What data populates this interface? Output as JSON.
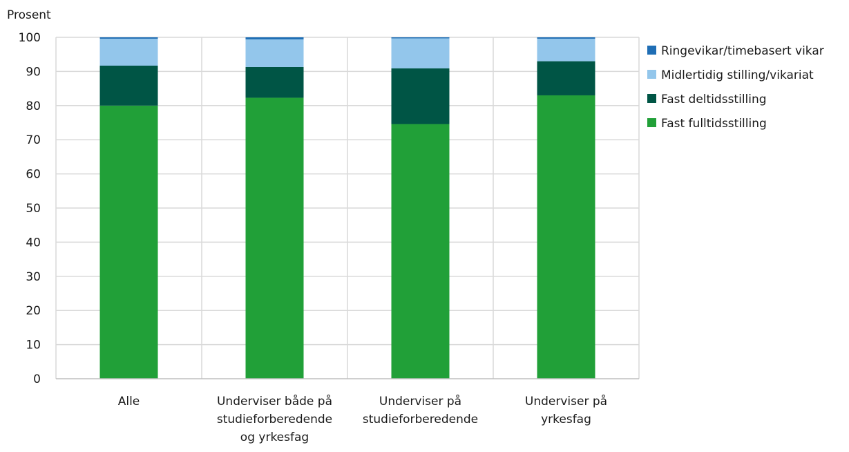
{
  "chart_data": {
    "type": "bar",
    "stacked": true,
    "ylabel": "Prosent",
    "ylim": [
      0,
      100
    ],
    "yticks": [
      0,
      10,
      20,
      30,
      40,
      50,
      60,
      70,
      80,
      90,
      100
    ],
    "grid": true,
    "legend_position": "right",
    "categories": [
      "Alle",
      "Underviser både på studieforberedende og yrkesfag",
      "Underviser på studieforberedende",
      "Underviser på yrkesfag"
    ],
    "category_lines": [
      [
        "Alle"
      ],
      [
        "Underviser både på",
        "studieforberedende",
        "og yrkesfag"
      ],
      [
        "Underviser på",
        "studieforberedende"
      ],
      [
        "Underviser på",
        "yrkesfag"
      ]
    ],
    "series": [
      {
        "name": "Fast fulltidsstilling",
        "color": "#21a038",
        "values": [
          80,
          82.3,
          74.6,
          83
        ]
      },
      {
        "name": "Fast deltidsstilling",
        "color": "#005545",
        "values": [
          11.7,
          9,
          16.3,
          10
        ]
      },
      {
        "name": "Midlertidig stilling/vikariat",
        "color": "#93c6eb",
        "values": [
          7.9,
          8.1,
          8.8,
          6.6
        ]
      },
      {
        "name": "Ringevikar/timebasert vikar",
        "color": "#1f6eb5",
        "values": [
          0.4,
          0.6,
          0.3,
          0.4
        ]
      }
    ]
  }
}
